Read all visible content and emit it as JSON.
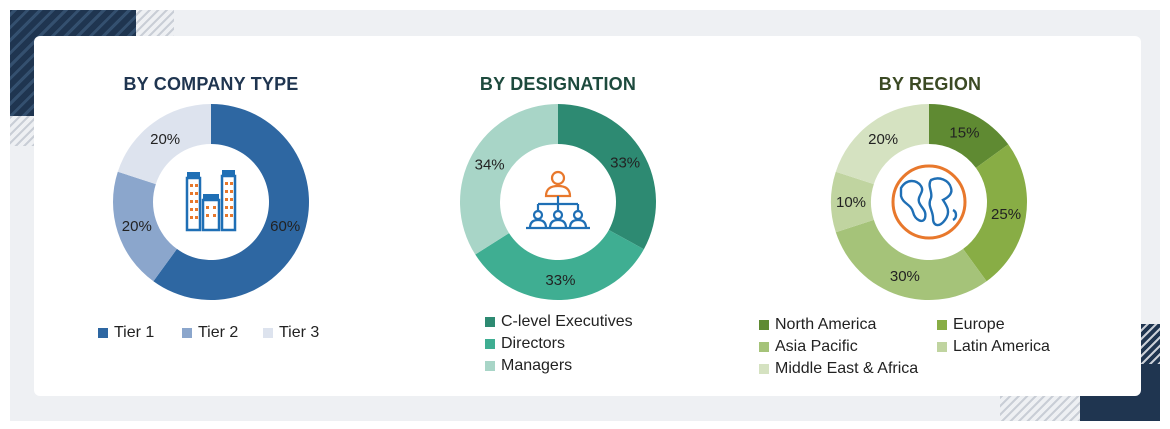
{
  "colors": {
    "tier1": "#2e67a2",
    "tier2": "#8ba6cc",
    "tier3": "#dde3ee",
    "clevel": "#2d8a72",
    "directors": "#3fae92",
    "managers": "#a8d5c7",
    "north_america": "#5f8a32",
    "europe": "#88ad45",
    "asia_pacific": "#a5c379",
    "latin_america": "#c0d4a0",
    "mea": "#d5e2c1"
  },
  "icons": {
    "company": "buildings-icon",
    "designation": "org-hierarchy-icon",
    "region": "globe-icon"
  },
  "chart_data": [
    {
      "type": "pie",
      "title": "BY COMPANY TYPE",
      "categories": [
        "Tier 1",
        "Tier 2",
        "Tier 3"
      ],
      "values": [
        60,
        20,
        20
      ],
      "labels": [
        "60%",
        "20%",
        "20%"
      ],
      "legend_position": "bottom"
    },
    {
      "type": "pie",
      "title": "BY DESIGNATION",
      "categories": [
        "C-level Executives",
        "Directors",
        "Managers"
      ],
      "values": [
        33,
        33,
        34
      ],
      "labels": [
        "33%",
        "33%",
        "34%"
      ],
      "legend_position": "bottom"
    },
    {
      "type": "pie",
      "title": "BY REGION",
      "categories": [
        "North America",
        "Europe",
        "Asia Pacific",
        "Latin America",
        "Middle East & Africa"
      ],
      "values": [
        15,
        25,
        30,
        10,
        20
      ],
      "labels": [
        "15%",
        "25%",
        "30%",
        "10%",
        "20%"
      ],
      "legend_position": "bottom"
    }
  ]
}
